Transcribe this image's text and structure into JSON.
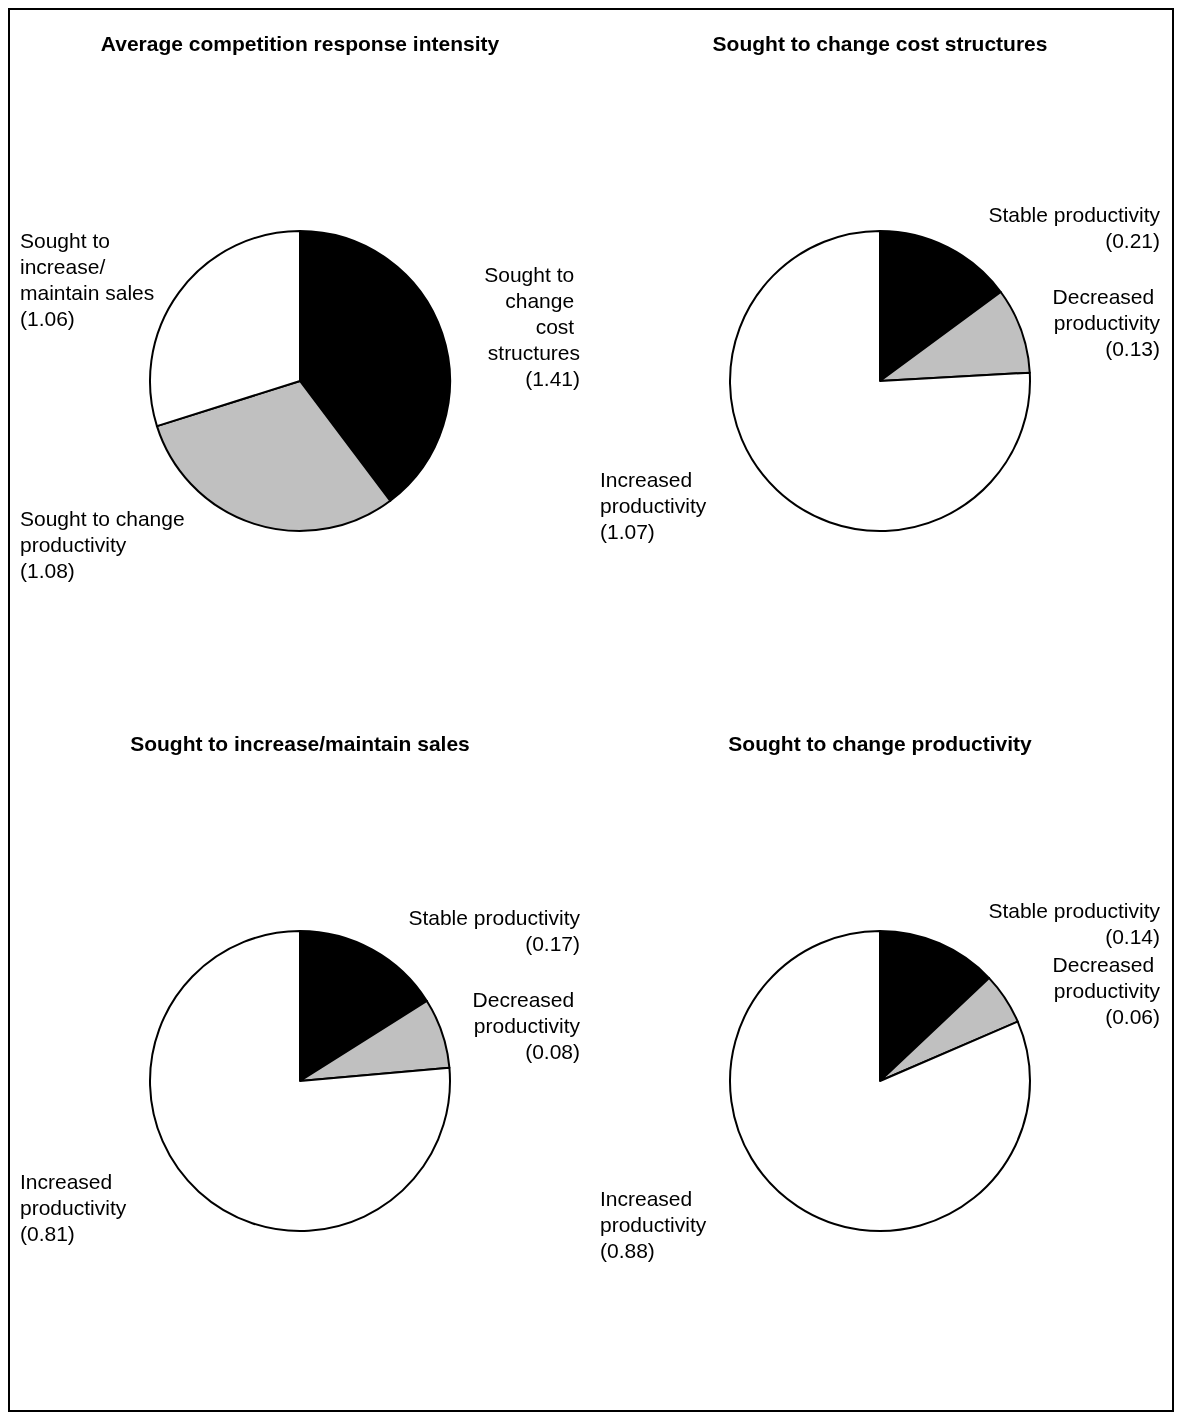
{
  "chart_data": [
    {
      "type": "pie",
      "title": "Average competition response intensity",
      "categories": [
        "Sought to change cost structures",
        "Sought to change productivity",
        "Sought to increase/maintain sales"
      ],
      "values": [
        1.41,
        1.08,
        1.06
      ],
      "value_labels": [
        "(1.41)",
        "(1.08)",
        "(1.06)"
      ],
      "colors": [
        "#000000",
        "#c0c0c0",
        "#ffffff"
      ]
    },
    {
      "type": "pie",
      "title": "Sought to change cost structures",
      "categories": [
        "Stable productivity",
        "Decreased productivity",
        "Increased productivity"
      ],
      "values": [
        0.21,
        0.13,
        1.07
      ],
      "value_labels": [
        "(0.21)",
        "(0.13)",
        "(1.07)"
      ],
      "colors": [
        "#000000",
        "#c0c0c0",
        "#ffffff"
      ]
    },
    {
      "type": "pie",
      "title": "Sought to increase/maintain sales",
      "categories": [
        "Stable productivity",
        "Decreased productivity",
        "Increased productivity"
      ],
      "values": [
        0.17,
        0.08,
        0.81
      ],
      "value_labels": [
        "(0.17)",
        "(0.08)",
        "(0.81)"
      ],
      "colors": [
        "#000000",
        "#c0c0c0",
        "#ffffff"
      ]
    },
    {
      "type": "pie",
      "title": "Sought to change productivity",
      "categories": [
        "Stable productivity",
        "Decreased productivity",
        "Increased productivity"
      ],
      "values": [
        0.14,
        0.06,
        0.88
      ],
      "value_labels": [
        "(0.14)",
        "(0.06)",
        "(0.88)"
      ],
      "colors": [
        "#000000",
        "#c0c0c0",
        "#ffffff"
      ]
    }
  ]
}
